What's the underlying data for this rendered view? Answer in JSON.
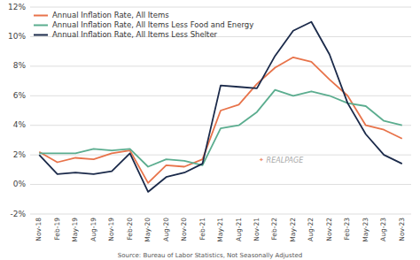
{
  "chart_data": {
    "type": "line",
    "categories": [
      "Nov-18",
      "Feb-19",
      "May-19",
      "Aug-19",
      "Nov-19",
      "Feb-20",
      "May-20",
      "Aug-20",
      "Nov-20",
      "Feb-21",
      "May-21",
      "Aug-21",
      "Nov-21",
      "Feb-22",
      "May-22",
      "Aug-22",
      "Nov-22",
      "Feb-23",
      "May-23",
      "Aug-23",
      "Nov-23"
    ],
    "series": [
      {
        "name": "Annual Inflation Rate, All Items",
        "color": "#E8734A",
        "values": [
          2.2,
          1.5,
          1.8,
          1.7,
          2.1,
          2.3,
          0.1,
          1.3,
          1.2,
          1.7,
          5.0,
          5.4,
          6.8,
          7.9,
          8.6,
          8.3,
          7.1,
          6.0,
          4.0,
          3.7,
          3.1
        ]
      },
      {
        "name": "Annual Inflation Rate, All Items Less Food and Energy",
        "color": "#5BAD8F",
        "values": [
          2.1,
          2.1,
          2.1,
          2.4,
          2.3,
          2.4,
          1.2,
          1.7,
          1.6,
          1.3,
          3.8,
          4.0,
          4.9,
          6.4,
          6.0,
          6.3,
          6.0,
          5.5,
          5.3,
          4.3,
          4.0
        ]
      },
      {
        "name": "Annual Inflation Rate, All Items Less Shelter",
        "color": "#1B2A4A",
        "values": [
          2.0,
          0.7,
          0.8,
          0.7,
          0.9,
          2.1,
          -0.5,
          0.5,
          0.8,
          1.4,
          6.7,
          6.6,
          6.5,
          8.7,
          10.4,
          11.0,
          8.8,
          5.5,
          3.4,
          2.0,
          1.4
        ]
      }
    ],
    "ylim": [
      -2,
      12
    ],
    "yticks": [
      {
        "value": -2,
        "label": "-2%"
      },
      {
        "value": 0,
        "label": "0%"
      },
      {
        "value": 2,
        "label": "2%"
      },
      {
        "value": 4,
        "label": "4%"
      },
      {
        "value": 6,
        "label": "6%"
      },
      {
        "value": 8,
        "label": "8%"
      },
      {
        "value": 10,
        "label": "10%"
      },
      {
        "value": 12,
        "label": "12%"
      }
    ],
    "grid": true,
    "legend": "upper left",
    "annotations": [
      "✦",
      "REALPAGE",
      "Source: Bureau of Labor Statistics, Not Seasonally Adjusted"
    ]
  }
}
